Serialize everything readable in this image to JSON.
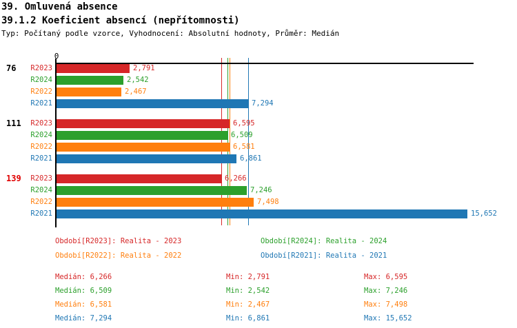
{
  "header": {
    "title1": "39. Omluvená absence",
    "title2": "39.1.2 Koeficient absencí (nepřítomnosti)",
    "subtitle": "Typ: Počítaný podle vzorce, Vyhodnocení: Absolutní hodnoty, Průměr: Medián"
  },
  "axis": {
    "origin_label": "0"
  },
  "colors": {
    "R2023": "#d62728",
    "R2024": "#2ca02c",
    "R2022": "#ff7f0e",
    "R2021": "#1f77b4",
    "highlight": "#e00000",
    "axis": "#000000"
  },
  "chart_data": {
    "type": "bar",
    "orientation": "horizontal",
    "title": "39.1.2 Koeficient absencí (nepřítomnosti)",
    "xlim": [
      0,
      15880
    ],
    "grid": false,
    "series_order": [
      "R2023",
      "R2024",
      "R2022",
      "R2021"
    ],
    "groups": [
      {
        "label": "76",
        "highlighted": false,
        "values": {
          "R2023": 2791,
          "R2024": 2542,
          "R2022": 2467,
          "R2021": 7294
        }
      },
      {
        "label": "111",
        "highlighted": false,
        "values": {
          "R2023": 6595,
          "R2024": 6509,
          "R2022": 6581,
          "R2021": 6861
        }
      },
      {
        "label": "139",
        "highlighted": true,
        "values": {
          "R2023": 6266,
          "R2024": 7246,
          "R2022": 7498,
          "R2021": 15652
        }
      }
    ],
    "median_lines": [
      {
        "series": "R2023",
        "value": 6266
      },
      {
        "series": "R2024",
        "value": 6509
      },
      {
        "series": "R2022",
        "value": 6581
      },
      {
        "series": "R2021",
        "value": 7294
      }
    ]
  },
  "legend": {
    "items": [
      {
        "series": "R2023",
        "label": "Období[R2023]: Realita - 2023",
        "col": 0,
        "row": 0
      },
      {
        "series": "R2024",
        "label": "Období[R2024]: Realita - 2024",
        "col": 1,
        "row": 0
      },
      {
        "series": "R2022",
        "label": "Období[R2022]: Realita - 2022",
        "col": 0,
        "row": 1
      },
      {
        "series": "R2021",
        "label": "Období[R2021]: Realita - 2021",
        "col": 1,
        "row": 1
      }
    ]
  },
  "stats": {
    "labels": {
      "median": "Medián:",
      "min": "Min:",
      "max": "Max:"
    },
    "rows": [
      {
        "series": "R2023",
        "median": 6266,
        "min": 2791,
        "max": 6595
      },
      {
        "series": "R2024",
        "median": 6509,
        "min": 2542,
        "max": 7246
      },
      {
        "series": "R2022",
        "median": 6581,
        "min": 2467,
        "max": 7498
      },
      {
        "series": "R2021",
        "median": 7294,
        "min": 6861,
        "max": 15652
      }
    ]
  }
}
